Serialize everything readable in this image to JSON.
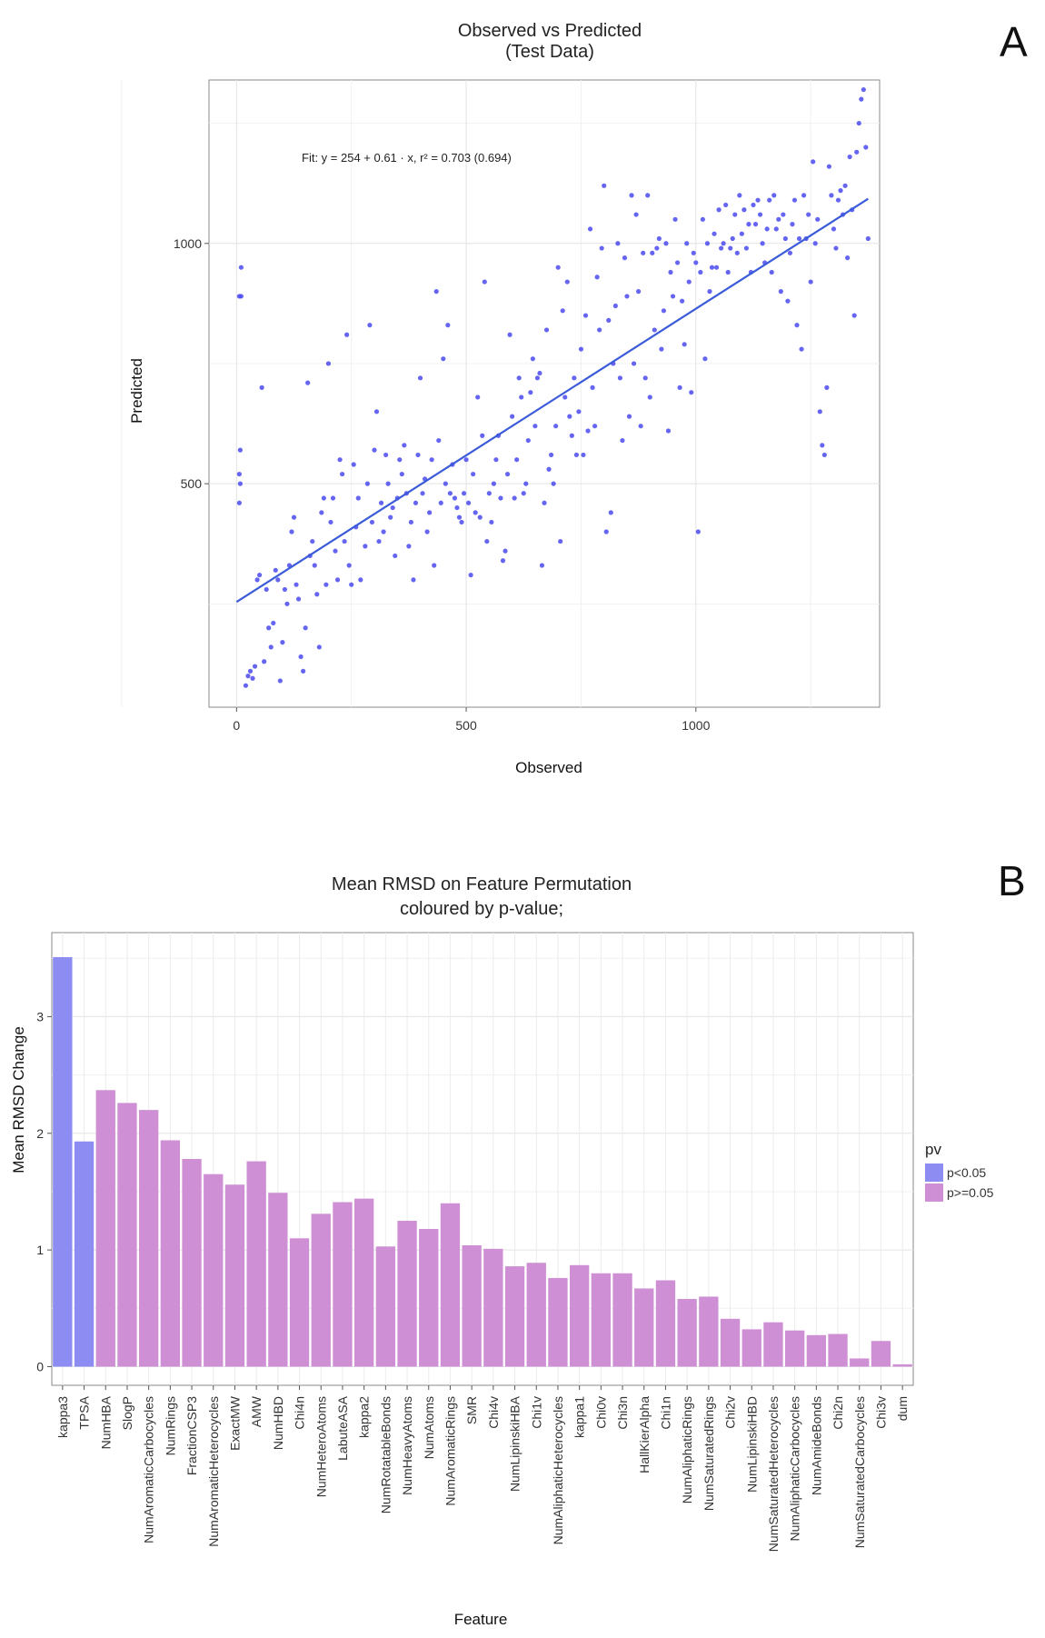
{
  "chart_data": [
    {
      "panel": "A",
      "type": "scatter",
      "title": "Observed vs Predicted",
      "subtitle": "(Test Data)",
      "xlabel": "Observed",
      "ylabel": "Predicted",
      "xlim": [
        -60,
        1400
      ],
      "ylim": [
        35,
        1340
      ],
      "xticks": [
        "0",
        "500",
        "1000"
      ],
      "yticks": [
        "500",
        "1000"
      ],
      "grid": true,
      "point_color": "#4a4af0",
      "line_color": "#3b5bd9",
      "fit_text": "Fit: y = 254 + 0.61 · x,  r² = 0.703 (0.694)",
      "fit": {
        "intercept": 254,
        "slope": 0.61,
        "x_range": [
          0,
          1375
        ]
      },
      "points": [
        [
          10,
          950
        ],
        [
          6,
          890
        ],
        [
          10,
          890
        ],
        [
          8,
          570
        ],
        [
          6,
          520
        ],
        [
          8,
          500
        ],
        [
          6,
          460
        ],
        [
          20,
          80
        ],
        [
          25,
          100
        ],
        [
          30,
          110
        ],
        [
          35,
          95
        ],
        [
          40,
          120
        ],
        [
          45,
          300
        ],
        [
          50,
          310
        ],
        [
          55,
          700
        ],
        [
          60,
          130
        ],
        [
          65,
          280
        ],
        [
          70,
          200
        ],
        [
          75,
          160
        ],
        [
          80,
          210
        ],
        [
          85,
          320
        ],
        [
          90,
          300
        ],
        [
          95,
          90
        ],
        [
          100,
          170
        ],
        [
          105,
          280
        ],
        [
          110,
          250
        ],
        [
          115,
          330
        ],
        [
          120,
          400
        ],
        [
          125,
          430
        ],
        [
          130,
          290
        ],
        [
          135,
          260
        ],
        [
          140,
          140
        ],
        [
          145,
          110
        ],
        [
          150,
          200
        ],
        [
          155,
          710
        ],
        [
          160,
          350
        ],
        [
          165,
          380
        ],
        [
          170,
          330
        ],
        [
          175,
          270
        ],
        [
          180,
          160
        ],
        [
          185,
          440
        ],
        [
          190,
          470
        ],
        [
          195,
          290
        ],
        [
          200,
          750
        ],
        [
          205,
          420
        ],
        [
          210,
          470
        ],
        [
          215,
          360
        ],
        [
          220,
          300
        ],
        [
          225,
          550
        ],
        [
          230,
          520
        ],
        [
          235,
          380
        ],
        [
          240,
          810
        ],
        [
          245,
          330
        ],
        [
          250,
          290
        ],
        [
          255,
          540
        ],
        [
          260,
          410
        ],
        [
          265,
          470
        ],
        [
          270,
          300
        ],
        [
          280,
          370
        ],
        [
          285,
          500
        ],
        [
          290,
          830
        ],
        [
          295,
          420
        ],
        [
          300,
          570
        ],
        [
          305,
          650
        ],
        [
          310,
          380
        ],
        [
          315,
          460
        ],
        [
          320,
          400
        ],
        [
          325,
          560
        ],
        [
          330,
          500
        ],
        [
          335,
          430
        ],
        [
          340,
          450
        ],
        [
          345,
          350
        ],
        [
          350,
          470
        ],
        [
          355,
          550
        ],
        [
          360,
          520
        ],
        [
          365,
          580
        ],
        [
          370,
          480
        ],
        [
          375,
          370
        ],
        [
          380,
          420
        ],
        [
          385,
          300
        ],
        [
          390,
          460
        ],
        [
          395,
          560
        ],
        [
          400,
          720
        ],
        [
          405,
          480
        ],
        [
          410,
          510
        ],
        [
          415,
          400
        ],
        [
          420,
          440
        ],
        [
          425,
          550
        ],
        [
          430,
          330
        ],
        [
          435,
          900
        ],
        [
          440,
          590
        ],
        [
          445,
          460
        ],
        [
          450,
          760
        ],
        [
          455,
          500
        ],
        [
          460,
          830
        ],
        [
          465,
          480
        ],
        [
          470,
          540
        ],
        [
          475,
          470
        ],
        [
          480,
          450
        ],
        [
          485,
          430
        ],
        [
          490,
          420
        ],
        [
          495,
          480
        ],
        [
          500,
          550
        ],
        [
          505,
          460
        ],
        [
          510,
          310
        ],
        [
          515,
          520
        ],
        [
          520,
          440
        ],
        [
          525,
          680
        ],
        [
          530,
          430
        ],
        [
          535,
          600
        ],
        [
          540,
          920
        ],
        [
          545,
          380
        ],
        [
          550,
          480
        ],
        [
          555,
          420
        ],
        [
          560,
          500
        ],
        [
          565,
          550
        ],
        [
          570,
          600
        ],
        [
          575,
          470
        ],
        [
          580,
          340
        ],
        [
          585,
          360
        ],
        [
          590,
          520
        ],
        [
          595,
          810
        ],
        [
          600,
          640
        ],
        [
          605,
          470
        ],
        [
          610,
          550
        ],
        [
          615,
          720
        ],
        [
          620,
          680
        ],
        [
          625,
          480
        ],
        [
          630,
          500
        ],
        [
          635,
          590
        ],
        [
          640,
          690
        ],
        [
          645,
          760
        ],
        [
          650,
          620
        ],
        [
          655,
          720
        ],
        [
          660,
          730
        ],
        [
          665,
          330
        ],
        [
          670,
          460
        ],
        [
          675,
          820
        ],
        [
          680,
          530
        ],
        [
          685,
          560
        ],
        [
          690,
          500
        ],
        [
          695,
          620
        ],
        [
          700,
          950
        ],
        [
          705,
          380
        ],
        [
          710,
          860
        ],
        [
          715,
          680
        ],
        [
          720,
          920
        ],
        [
          725,
          640
        ],
        [
          730,
          600
        ],
        [
          735,
          720
        ],
        [
          740,
          560
        ],
        [
          745,
          650
        ],
        [
          750,
          780
        ],
        [
          755,
          560
        ],
        [
          760,
          850
        ],
        [
          765,
          610
        ],
        [
          770,
          1030
        ],
        [
          775,
          700
        ],
        [
          780,
          620
        ],
        [
          785,
          930
        ],
        [
          790,
          820
        ],
        [
          795,
          990
        ],
        [
          800,
          1120
        ],
        [
          805,
          400
        ],
        [
          810,
          840
        ],
        [
          815,
          440
        ],
        [
          820,
          750
        ],
        [
          825,
          870
        ],
        [
          830,
          1000
        ],
        [
          835,
          720
        ],
        [
          840,
          590
        ],
        [
          845,
          970
        ],
        [
          850,
          890
        ],
        [
          855,
          640
        ],
        [
          860,
          1100
        ],
        [
          865,
          750
        ],
        [
          870,
          1060
        ],
        [
          875,
          900
        ],
        [
          880,
          620
        ],
        [
          885,
          980
        ],
        [
          890,
          720
        ],
        [
          895,
          1100
        ],
        [
          900,
          680
        ],
        [
          905,
          980
        ],
        [
          910,
          820
        ],
        [
          915,
          990
        ],
        [
          920,
          1010
        ],
        [
          925,
          780
        ],
        [
          930,
          860
        ],
        [
          935,
          1000
        ],
        [
          940,
          610
        ],
        [
          945,
          940
        ],
        [
          950,
          890
        ],
        [
          955,
          1050
        ],
        [
          960,
          960
        ],
        [
          965,
          700
        ],
        [
          970,
          880
        ],
        [
          975,
          790
        ],
        [
          980,
          1000
        ],
        [
          985,
          920
        ],
        [
          990,
          690
        ],
        [
          995,
          980
        ],
        [
          1000,
          960
        ],
        [
          1005,
          400
        ],
        [
          1010,
          940
        ],
        [
          1015,
          1050
        ],
        [
          1020,
          760
        ],
        [
          1025,
          1000
        ],
        [
          1030,
          900
        ],
        [
          1035,
          950
        ],
        [
          1040,
          1020
        ],
        [
          1045,
          950
        ],
        [
          1050,
          1070
        ],
        [
          1055,
          990
        ],
        [
          1060,
          1000
        ],
        [
          1065,
          1080
        ],
        [
          1070,
          940
        ],
        [
          1075,
          990
        ],
        [
          1080,
          1010
        ],
        [
          1085,
          1060
        ],
        [
          1090,
          980
        ],
        [
          1095,
          1100
        ],
        [
          1100,
          1020
        ],
        [
          1105,
          1070
        ],
        [
          1110,
          990
        ],
        [
          1115,
          1040
        ],
        [
          1120,
          940
        ],
        [
          1125,
          1080
        ],
        [
          1130,
          1040
        ],
        [
          1135,
          1090
        ],
        [
          1140,
          1060
        ],
        [
          1145,
          1000
        ],
        [
          1150,
          960
        ],
        [
          1155,
          1030
        ],
        [
          1160,
          1090
        ],
        [
          1165,
          940
        ],
        [
          1170,
          1100
        ],
        [
          1175,
          1030
        ],
        [
          1180,
          1050
        ],
        [
          1185,
          900
        ],
        [
          1190,
          1060
        ],
        [
          1195,
          1010
        ],
        [
          1200,
          880
        ],
        [
          1205,
          980
        ],
        [
          1210,
          1040
        ],
        [
          1215,
          1090
        ],
        [
          1220,
          830
        ],
        [
          1225,
          1010
        ],
        [
          1230,
          780
        ],
        [
          1235,
          1100
        ],
        [
          1240,
          1010
        ],
        [
          1245,
          1060
        ],
        [
          1250,
          920
        ],
        [
          1255,
          1170
        ],
        [
          1260,
          1000
        ],
        [
          1265,
          1050
        ],
        [
          1270,
          650
        ],
        [
          1275,
          580
        ],
        [
          1280,
          560
        ],
        [
          1285,
          700
        ],
        [
          1290,
          1160
        ],
        [
          1295,
          1100
        ],
        [
          1300,
          1030
        ],
        [
          1305,
          990
        ],
        [
          1310,
          1090
        ],
        [
          1315,
          1110
        ],
        [
          1320,
          1060
        ],
        [
          1325,
          1120
        ],
        [
          1330,
          970
        ],
        [
          1335,
          1180
        ],
        [
          1340,
          1070
        ],
        [
          1345,
          850
        ],
        [
          1350,
          1190
        ],
        [
          1355,
          1250
        ],
        [
          1360,
          1300
        ],
        [
          1365,
          1320
        ],
        [
          1370,
          1200
        ],
        [
          1375,
          1010
        ]
      ]
    },
    {
      "panel": "B",
      "type": "bar",
      "title": "Mean RMSD on Feature Permutation",
      "subtitle": "coloured by p-value;",
      "xlabel": "Feature",
      "ylabel": "Mean RMSD Change",
      "ylim": [
        -0.16,
        3.72
      ],
      "yticks": [
        "0",
        "1",
        "2",
        "3"
      ],
      "grid": true,
      "legend": {
        "title": "pv",
        "placement": "right",
        "entries": [
          {
            "label": "p<0.05",
            "color": "#8c8cf2"
          },
          {
            "label": "p>=0.05",
            "color": "#cf8fd4"
          }
        ]
      },
      "categories": [
        "kappa3",
        "TPSA",
        "NumHBA",
        "SlogP",
        "NumAromaticCarbocycles",
        "NumRings",
        "FractionCSP3",
        "NumAromaticHeterocycles",
        "ExactMW",
        "AMW",
        "NumHBD",
        "Chi4n",
        "NumHeteroAtoms",
        "LabuteASA",
        "kappa2",
        "NumRotatableBonds",
        "NumHeavyAtoms",
        "NumAtoms",
        "NumAromaticRings",
        "SMR",
        "Chi4v",
        "NumLipinskiHBA",
        "Chi1v",
        "NumAliphaticHeterocycles",
        "kappa1",
        "Chi0v",
        "Chi3n",
        "HallKierAlpha",
        "Chi1n",
        "NumAliphaticRings",
        "NumSaturatedRings",
        "Chi2v",
        "NumLipinskiHBD",
        "NumSaturatedHeterocycles",
        "NumAliphaticCarbocycles",
        "NumAmideBonds",
        "Chi2n",
        "NumSaturatedCarbocycles",
        "Chi3v",
        "dum"
      ],
      "values": [
        3.51,
        1.93,
        2.37,
        2.26,
        2.2,
        1.94,
        1.78,
        1.65,
        1.56,
        1.76,
        1.49,
        1.1,
        1.31,
        1.41,
        1.44,
        1.03,
        1.25,
        1.18,
        1.4,
        1.04,
        1.01,
        0.86,
        0.89,
        0.76,
        0.87,
        0.8,
        0.8,
        0.67,
        0.74,
        0.58,
        0.6,
        0.41,
        0.32,
        0.38,
        0.31,
        0.27,
        0.28,
        0.07,
        0.22,
        0.02
      ],
      "groups": [
        "p<0.05",
        "p<0.05",
        "p>=0.05",
        "p>=0.05",
        "p>=0.05",
        "p>=0.05",
        "p>=0.05",
        "p>=0.05",
        "p>=0.05",
        "p>=0.05",
        "p>=0.05",
        "p>=0.05",
        "p>=0.05",
        "p>=0.05",
        "p>=0.05",
        "p>=0.05",
        "p>=0.05",
        "p>=0.05",
        "p>=0.05",
        "p>=0.05",
        "p>=0.05",
        "p>=0.05",
        "p>=0.05",
        "p>=0.05",
        "p>=0.05",
        "p>=0.05",
        "p>=0.05",
        "p>=0.05",
        "p>=0.05",
        "p>=0.05",
        "p>=0.05",
        "p>=0.05",
        "p>=0.05",
        "p>=0.05",
        "p>=0.05",
        "p>=0.05",
        "p>=0.05",
        "p>=0.05",
        "p>=0.05",
        "p>=0.05"
      ]
    }
  ]
}
